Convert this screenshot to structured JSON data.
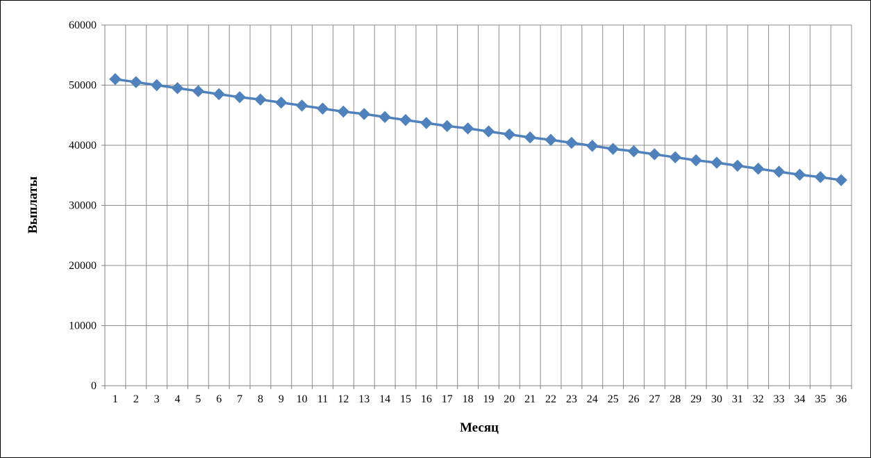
{
  "chart_data": {
    "type": "line",
    "title": "",
    "xlabel": "Месяц",
    "ylabel": "Выплаты",
    "categories": [
      "1",
      "2",
      "3",
      "4",
      "5",
      "6",
      "7",
      "8",
      "9",
      "10",
      "11",
      "12",
      "13",
      "14",
      "15",
      "16",
      "17",
      "18",
      "19",
      "20",
      "21",
      "22",
      "23",
      "24",
      "25",
      "26",
      "27",
      "28",
      "29",
      "30",
      "31",
      "32",
      "33",
      "34",
      "35",
      "36"
    ],
    "series": [
      {
        "values": [
          51000,
          50500,
          50000,
          49500,
          49000,
          48500,
          48000,
          47600,
          47100,
          46600,
          46100,
          45600,
          45200,
          44700,
          44200,
          43700,
          43200,
          42800,
          42300,
          41800,
          41300,
          40900,
          40400,
          39900,
          39400,
          39000,
          38500,
          38000,
          37500,
          37100,
          36600,
          36100,
          35600,
          35100,
          34700,
          34200
        ]
      }
    ],
    "ylim": [
      0,
      60000
    ],
    "yticks": [
      "0",
      "10000",
      "20000",
      "30000",
      "40000",
      "50000",
      "60000"
    ],
    "grid": true,
    "legend": "none",
    "line_color": "#4F81BD",
    "marker": "diamond"
  }
}
